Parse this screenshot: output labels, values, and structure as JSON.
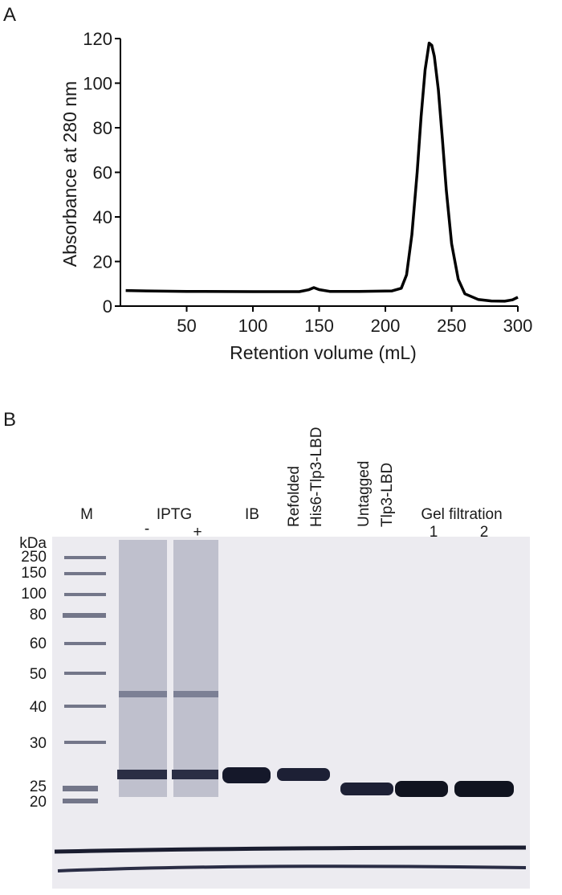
{
  "panel_labels": [
    "A",
    "B"
  ],
  "chart_data": {
    "type": "line",
    "xlabel": "Retention volume (mL)",
    "ylabel": "Absorbance at 280 nm",
    "xlim": [
      0,
      300
    ],
    "ylim": [
      0,
      120
    ],
    "xticks": [
      50,
      100,
      150,
      200,
      250,
      300
    ],
    "yticks": [
      0,
      20,
      40,
      60,
      80,
      100,
      120
    ],
    "x": [
      4,
      20,
      50,
      100,
      135,
      142,
      146,
      150,
      158,
      180,
      205,
      212,
      216,
      220,
      224,
      227,
      230,
      233,
      235,
      237,
      240,
      243,
      246,
      250,
      255,
      260,
      270,
      280,
      290,
      296,
      300
    ],
    "series": [
      {
        "name": "A280",
        "color": "#000000",
        "values": [
          7,
          6.8,
          6.6,
          6.5,
          6.5,
          7.3,
          8.3,
          7.4,
          6.6,
          6.6,
          6.8,
          8,
          14,
          32,
          60,
          85,
          106,
          118,
          117,
          112,
          97,
          75,
          52,
          28,
          12,
          5.5,
          3,
          2.3,
          2.2,
          2.8,
          4
        ]
      }
    ]
  },
  "gel": {
    "unit_label": "kDa",
    "markers": [
      250,
      150,
      100,
      80,
      60,
      50,
      40,
      30,
      25,
      20
    ],
    "lanes": {
      "marker": "M",
      "iptg": "IPTG",
      "iptg_minus": "-",
      "iptg_plus": "+",
      "ib": "IB",
      "refolded": [
        "Refolded",
        "His6-Tlp3-LBD"
      ],
      "untagged": [
        "Untagged",
        "Tlp3-LBD"
      ],
      "gel_filtration": "Gel filtration",
      "gf_1": "1",
      "gf_2": "2"
    }
  }
}
